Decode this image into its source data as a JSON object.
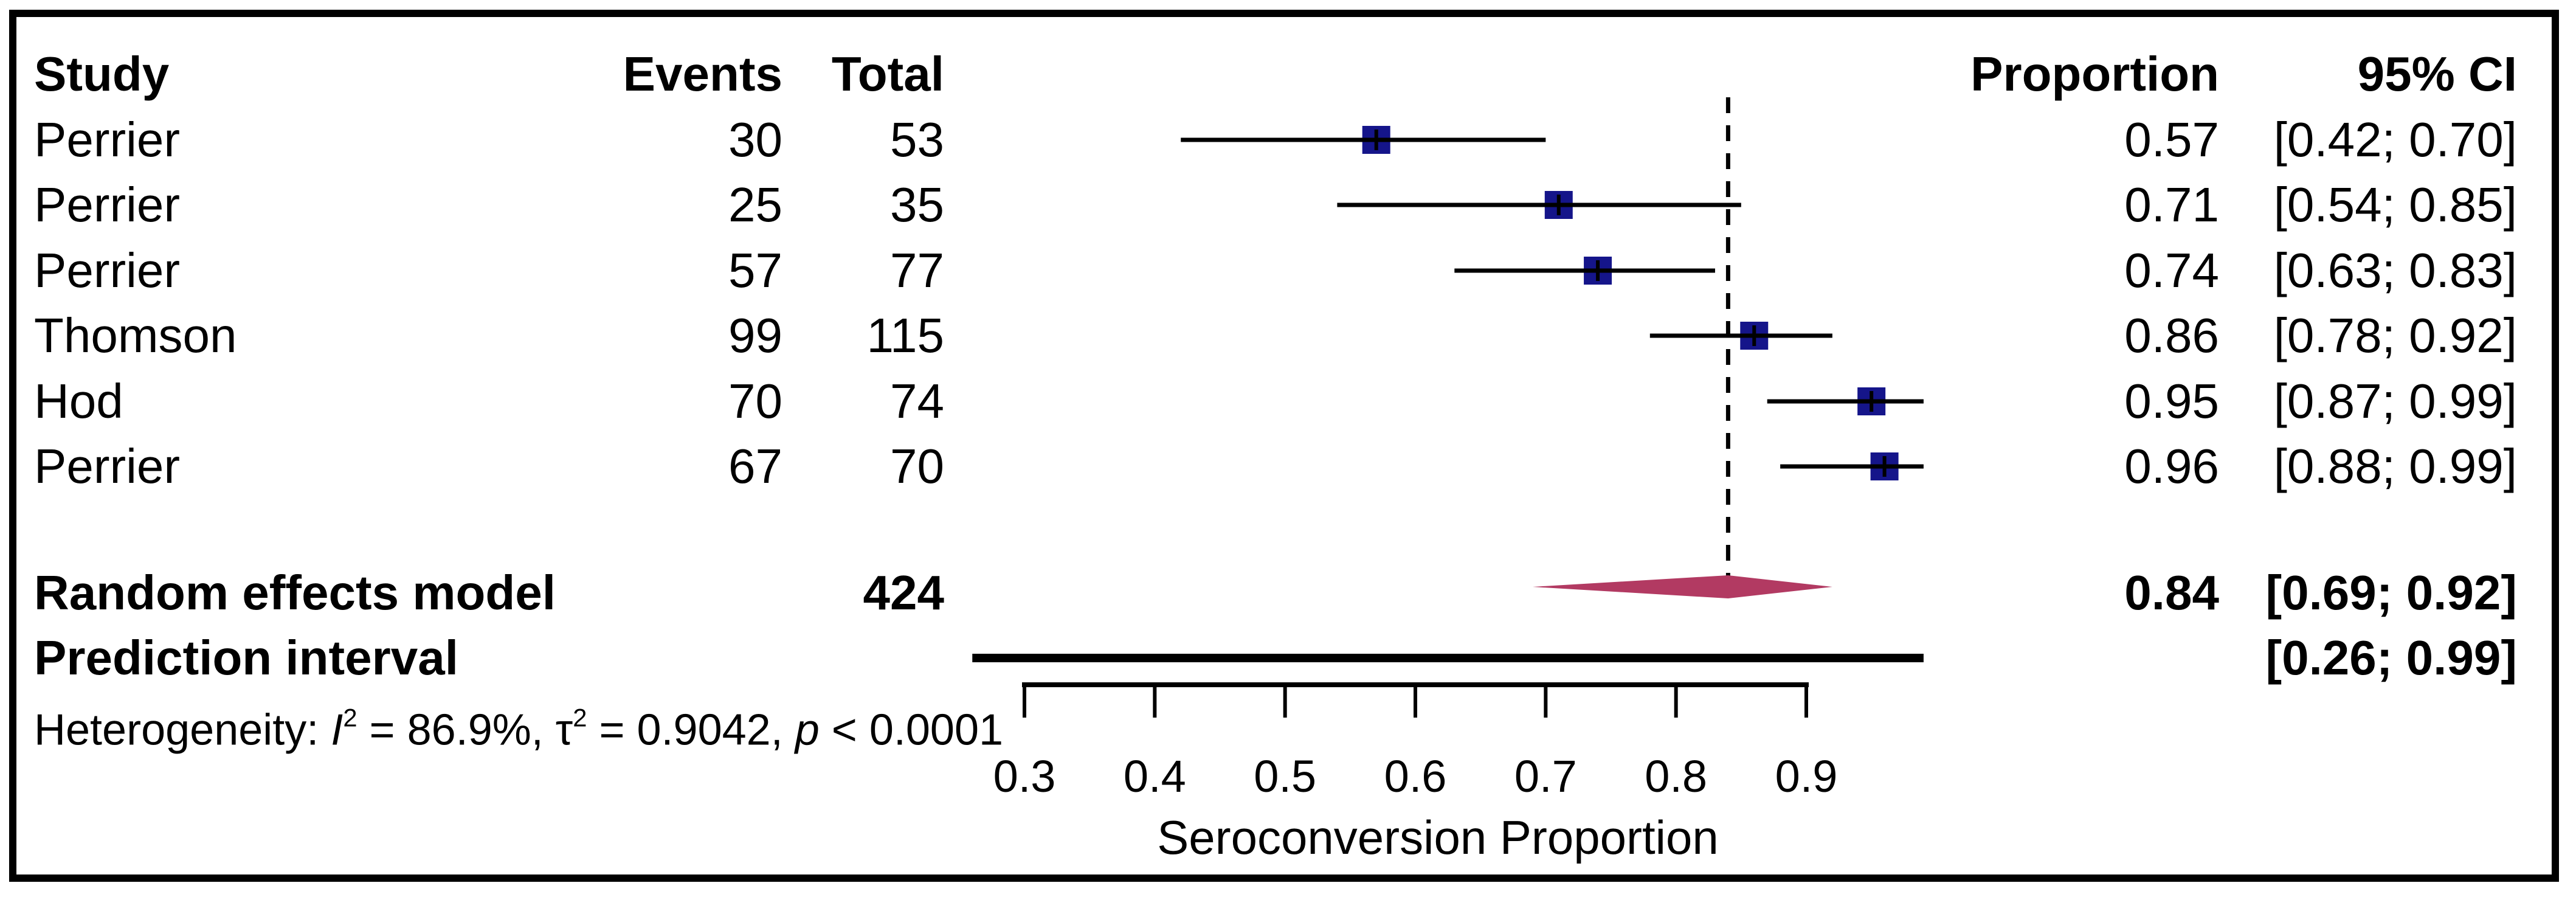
{
  "chart_data": {
    "type": "forest",
    "xlabel": "Seroconversion Proportion",
    "x_axis_range": [
      0.3,
      0.9
    ],
    "x_ticks": [
      0.3,
      0.4,
      0.5,
      0.6,
      0.7,
      0.8,
      0.9
    ],
    "x_tick_labels": [
      "0.3",
      "0.4",
      "0.5",
      "0.6",
      "0.7",
      "0.8",
      "0.9"
    ],
    "reference_line_value": 0.84,
    "columns": {
      "study": "Study",
      "events": "Events",
      "total": "Total",
      "proportion": "Proportion",
      "ci": "95% CI"
    },
    "studies": [
      {
        "study": "Perrier",
        "events": "30",
        "total": "53",
        "proportion": "0.57",
        "ci_text": "[0.42; 0.70]",
        "est": 0.57,
        "lower": 0.42,
        "upper": 0.7
      },
      {
        "study": "Perrier",
        "events": "25",
        "total": "35",
        "proportion": "0.71",
        "ci_text": "[0.54; 0.85]",
        "est": 0.71,
        "lower": 0.54,
        "upper": 0.85
      },
      {
        "study": "Perrier",
        "events": "57",
        "total": "77",
        "proportion": "0.74",
        "ci_text": "[0.63; 0.83]",
        "est": 0.74,
        "lower": 0.63,
        "upper": 0.83
      },
      {
        "study": "Thomson",
        "events": "99",
        "total": "115",
        "proportion": "0.86",
        "ci_text": "[0.78; 0.92]",
        "est": 0.86,
        "lower": 0.78,
        "upper": 0.92
      },
      {
        "study": "Hod",
        "events": "70",
        "total": "74",
        "proportion": "0.95",
        "ci_text": "[0.87; 0.99]",
        "est": 0.95,
        "lower": 0.87,
        "upper": 0.99
      },
      {
        "study": "Perrier",
        "events": "67",
        "total": "70",
        "proportion": "0.96",
        "ci_text": "[0.88; 0.99]",
        "est": 0.96,
        "lower": 0.88,
        "upper": 0.99
      }
    ],
    "random_effects": {
      "label": "Random effects model",
      "total": "424",
      "proportion": "0.84",
      "ci_text": "[0.69; 0.92]",
      "est": 0.84,
      "lower": 0.69,
      "upper": 0.92
    },
    "prediction_interval": {
      "label": "Prediction interval",
      "ci_text": "[0.26; 0.99]",
      "lower": 0.26,
      "upper": 0.99
    },
    "heterogeneity": {
      "prefix": "Heterogeneity: ",
      "stat1": "I",
      "stat1_sup": "2",
      "seg1": " = 86.9%, ",
      "stat2": "τ",
      "stat2_sup": "2",
      "seg2": " = 0.9042, ",
      "stat3": "p",
      "seg3": " < 0.0001"
    },
    "colors": {
      "study_marker": "#15158a",
      "diamond": "#b23a62",
      "lines": "#000000"
    }
  }
}
